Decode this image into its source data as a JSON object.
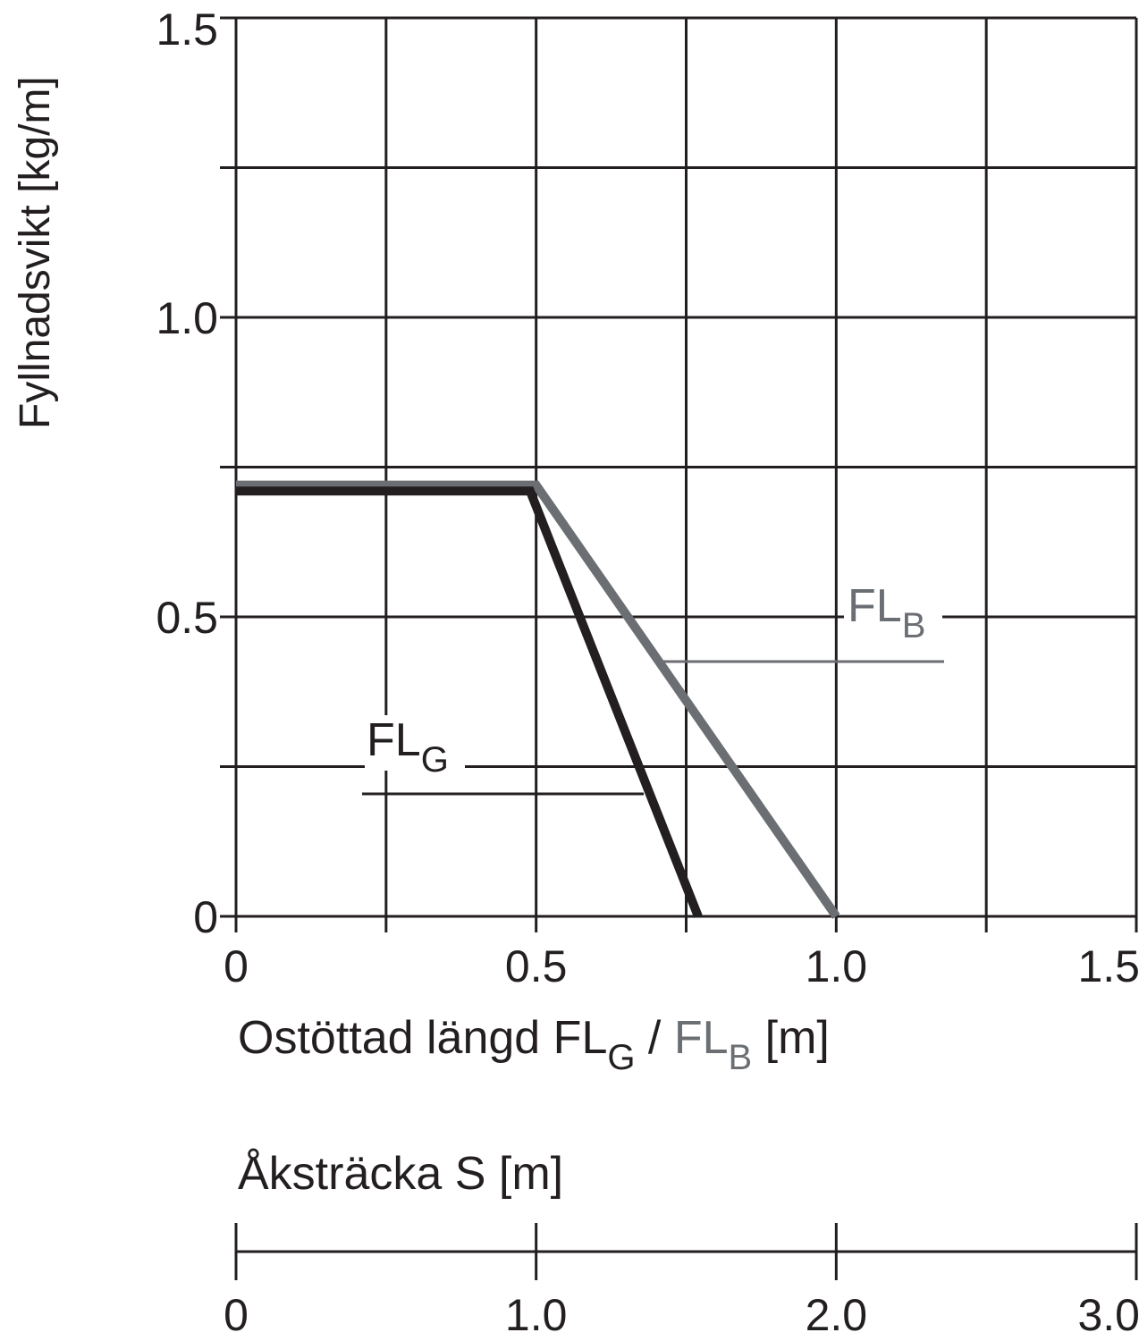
{
  "chart_data": {
    "type": "line",
    "xlabel": {
      "prefix": "Ostöttad längd  FL",
      "sub_g": "G",
      "slash": " / ",
      "fl_b": "FL",
      "sub_b": "B",
      "unit": " [m]"
    },
    "ylabel": "Fyllnadsvikt [kg/m]",
    "xlim": [
      0,
      1.5
    ],
    "ylim": [
      0,
      1.5
    ],
    "x_ticks": [
      0,
      0.25,
      0.5,
      0.75,
      1.0,
      1.25,
      1.5
    ],
    "y_ticks": [
      0,
      0.25,
      0.5,
      0.75,
      1.0,
      1.25,
      1.5
    ],
    "x_tick_labels": [
      {
        "v": 0,
        "label": "0"
      },
      {
        "v": 0.5,
        "label": "0.5"
      },
      {
        "v": 1.0,
        "label": "1.0"
      },
      {
        "v": 1.5,
        "label": "1.5"
      }
    ],
    "y_tick_labels": [
      {
        "v": 0,
        "label": "0"
      },
      {
        "v": 0.5,
        "label": "0.5"
      },
      {
        "v": 1.0,
        "label": "1.0"
      },
      {
        "v": 1.5,
        "label": "1.5"
      }
    ],
    "grid": true,
    "series": [
      {
        "name": "FL_B",
        "label": "FL",
        "sub": "B",
        "color": "#6b6e73",
        "x": [
          0,
          0.5,
          1.0
        ],
        "y": [
          0.72,
          0.72,
          0
        ]
      },
      {
        "name": "FL_G",
        "label": "FL",
        "sub": "G",
        "color": "#231f20",
        "x": [
          0,
          0.49,
          0.77
        ],
        "y": [
          0.71,
          0.71,
          0
        ]
      }
    ],
    "secondary_axis": {
      "label": "Åksträcka S [m]",
      "range": [
        0,
        3.0
      ],
      "ticks": [
        {
          "v": 0,
          "label": "0"
        },
        {
          "v": 1.0,
          "label": "1.0"
        },
        {
          "v": 2.0,
          "label": "2.0"
        },
        {
          "v": 3.0,
          "label": "3.0"
        }
      ]
    }
  }
}
